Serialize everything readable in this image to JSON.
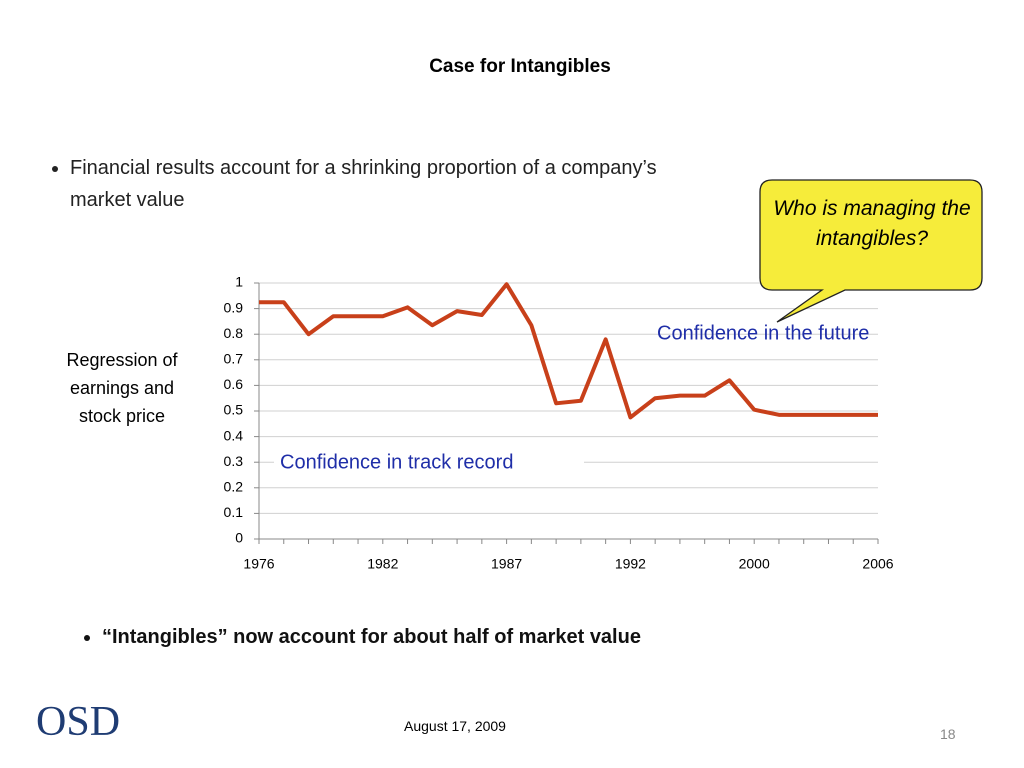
{
  "slide": {
    "title": "Case for Intangibles",
    "bullets": [
      "Financial results account for a shrinking proportion of a company’s market value",
      "“Intangibles” now account for about half of market value"
    ],
    "callout": "Who is managing the intangibles?",
    "logo": "OSD",
    "date": "August 17, 2009",
    "page": "18"
  },
  "chart_data": {
    "type": "line",
    "y_label": "Regression of earnings and stock price",
    "annotations": [
      "Confidence in the future",
      "Confidence in track record"
    ],
    "categories": [
      "1976",
      null,
      null,
      null,
      null,
      "1982",
      null,
      null,
      null,
      null,
      "1987",
      null,
      null,
      null,
      null,
      "1992",
      null,
      null,
      null,
      null,
      "2000",
      null,
      null,
      null,
      null,
      "2006"
    ],
    "values": [
      0.925,
      0.925,
      0.8,
      0.87,
      0.87,
      0.87,
      0.905,
      0.835,
      0.89,
      0.875,
      0.995,
      0.835,
      0.53,
      0.54,
      0.78,
      0.475,
      0.55,
      0.56,
      0.56,
      0.62,
      0.505,
      0.485,
      0.485,
      0.485,
      0.485,
      0.485
    ],
    "color": "#c8401a",
    "ylim": [
      0,
      1
    ],
    "yticks": [
      0,
      0.1,
      0.2,
      0.3,
      0.4,
      0.5,
      0.6,
      0.7,
      0.8,
      0.9,
      1
    ],
    "grid": true
  }
}
